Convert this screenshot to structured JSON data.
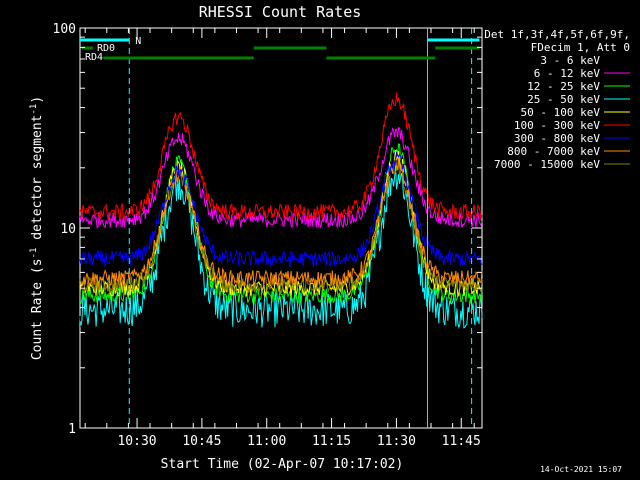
{
  "chart_data": {
    "type": "line",
    "title": "RHESSI Count Rates",
    "xlabel": "Start Time (02-Apr-07 10:17:02)",
    "ylabel": "Count Rate (s",
    "ylabel_sup": "-1",
    "ylabel_tail": " detector segment",
    "ylabel_tail_sup": "-1",
    "ylabel_close": ")",
    "yscale": "log",
    "ylim": [
      1,
      100
    ],
    "xlim_minutes": [
      10.28,
      11.83
    ],
    "y_tick_labels": [
      "1",
      "10",
      "100"
    ],
    "x_tick_labels": [
      "10:30",
      "10:45",
      "11:00",
      "11:15",
      "11:30",
      "11:45"
    ],
    "x_tick_values_hours": [
      10.5,
      10.75,
      11.0,
      11.25,
      11.5,
      11.75
    ],
    "legend_header": [
      "Det 1f,3f,4f,5f,6f,9f,",
      "FDecim 1, Att 0"
    ],
    "series": [
      {
        "name": "3 - 6 keV",
        "color": "#000000",
        "low": 3.4,
        "peak1": 18,
        "peak2": 20
      },
      {
        "name": "6 - 12 keV",
        "color": "#ff00ff",
        "low": 11,
        "peak1": 28,
        "peak2": 30
      },
      {
        "name": "12 - 25 keV",
        "color": "#00ff00",
        "low": 4.6,
        "peak1": 21,
        "peak2": 25
      },
      {
        "name": "25 - 50 keV",
        "color": "#00ffff",
        "low": 3.9,
        "peak1": 17,
        "peak2": 19
      },
      {
        "name": "50 - 100 keV",
        "color": "#ffff00",
        "low": 5.0,
        "peak1": 20,
        "peak2": 23
      },
      {
        "name": "100 - 300 keV",
        "color": "#ff0000",
        "low": 12,
        "peak1": 36,
        "peak2": 44
      },
      {
        "name": "300 - 800 keV",
        "color": "#0000ff",
        "low": 7.0,
        "peak1": 19,
        "peak2": 22
      },
      {
        "name": "800 - 7000 keV",
        "color": "#ff8c00",
        "low": 5.6,
        "peak1": 18,
        "peak2": 21
      },
      {
        "name": "7000 - 15000 keV",
        "color": "#808000",
        "low": 5.2,
        "peak1": 18,
        "peak2": 20
      }
    ],
    "annotations": {
      "rd0_label": "RD0",
      "rd4_label": "RD4",
      "n_label": "N",
      "date_stamp": "14-Oct-2021 15:07"
    },
    "colors": {
      "background": "#000000",
      "axes": "#ffffff",
      "night": "#00ffff",
      "rd": "#008000"
    }
  }
}
